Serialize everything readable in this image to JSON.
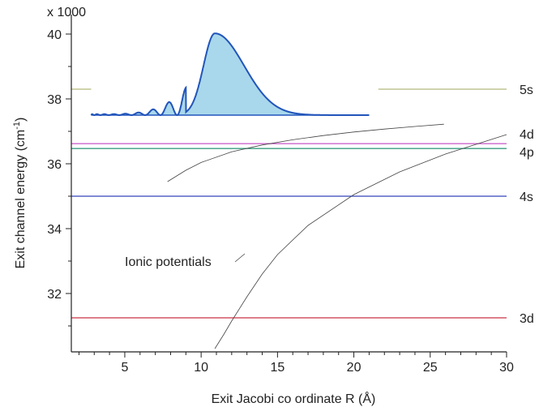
{
  "chart_data": {
    "type": "line",
    "xlabel": "Exit Jacobi  co ordinate R (Å)",
    "ylabel_main": "Exit channel energy  (cm",
    "ylabel_sup": "-1",
    "ylabel_close": ")",
    "multiplier": "x 1000",
    "xlim": [
      1.5,
      30
    ],
    "ylim": [
      30.2,
      40.6
    ],
    "x_ticks": [
      5,
      10,
      15,
      20,
      25,
      30
    ],
    "x_tick_labels": [
      "5",
      "10",
      "15",
      "20",
      "25",
      "30"
    ],
    "y_ticks": [
      32,
      34,
      36,
      38,
      40
    ],
    "y_tick_labels": [
      "32",
      "34",
      "36",
      "38",
      "40"
    ],
    "grid": false,
    "legend": "none",
    "levels": [
      {
        "name": "5s",
        "y": 38.3,
        "color": "#b5b97a",
        "segments": [
          [
            1.5,
            2.8
          ],
          [
            21.6,
            30
          ]
        ]
      },
      {
        "name": "4d",
        "y": 36.62,
        "color": "#cc66cc",
        "segments": [
          [
            1.5,
            30
          ]
        ]
      },
      {
        "name": "4p",
        "y": 36.47,
        "color": "#3a9e80",
        "segments": [
          [
            1.5,
            30
          ]
        ]
      },
      {
        "name": "4s",
        "y": 35.0,
        "color": "#3344bb",
        "segments": [
          [
            1.5,
            30
          ]
        ]
      },
      {
        "name": "3d",
        "y": 31.25,
        "color": "#cc3344",
        "segments": [
          [
            1.5,
            30
          ]
        ]
      }
    ],
    "ionic_label": "Ionic potentials",
    "ionic_curves": [
      {
        "x": [
          7.8,
          9,
          10,
          12,
          14,
          16,
          18,
          20,
          22,
          24,
          25.9
        ],
        "y": [
          35.45,
          35.8,
          36.04,
          36.37,
          36.58,
          36.74,
          36.87,
          36.98,
          37.07,
          37.15,
          37.22
        ]
      },
      {
        "x": [
          10.9,
          11.5,
          12,
          13,
          14,
          15,
          17,
          20,
          23,
          26,
          29,
          30
        ],
        "y": [
          30.3,
          30.75,
          31.15,
          31.9,
          32.6,
          33.2,
          34.1,
          35.05,
          35.75,
          36.3,
          36.75,
          36.9
        ]
      }
    ],
    "wavefunction": {
      "baseline": 37.5,
      "x_start": 2.8,
      "x_end": 21.0,
      "color": "#2255bb",
      "fill": "#a9d8ec"
    }
  }
}
